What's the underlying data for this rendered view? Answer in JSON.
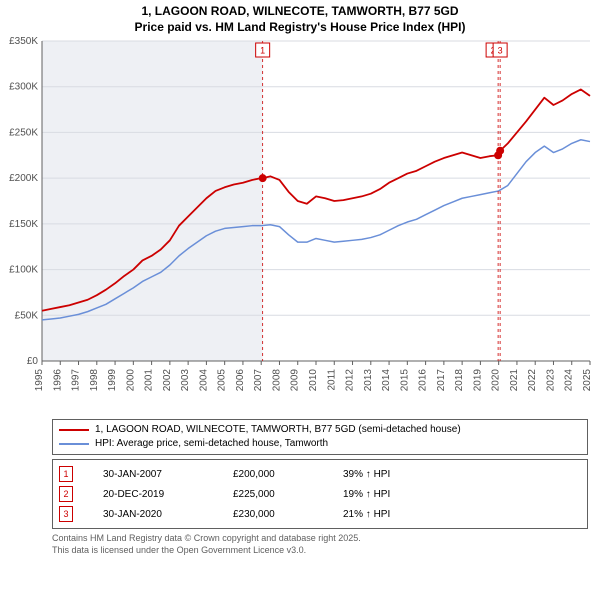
{
  "title_line1": "1, LAGOON ROAD, WILNECOTE, TAMWORTH, B77 5GD",
  "title_line2": "Price paid vs. HM Land Registry's House Price Index (HPI)",
  "chart": {
    "type": "line",
    "background_color": "#ffffff",
    "plot_bg_pre": "#eef0f4",
    "plot_bg_post": "#ffffff",
    "split_x": 2007.08,
    "x_min": 1995,
    "x_max": 2025,
    "x_ticks": [
      1995,
      1996,
      1997,
      1998,
      1999,
      2000,
      2001,
      2002,
      2003,
      2004,
      2005,
      2006,
      2007,
      2008,
      2009,
      2010,
      2011,
      2012,
      2013,
      2014,
      2015,
      2016,
      2017,
      2018,
      2019,
      2020,
      2021,
      2022,
      2023,
      2024,
      2025
    ],
    "y_min": 0,
    "y_max": 350000,
    "y_ticks": [
      0,
      50000,
      100000,
      150000,
      200000,
      250000,
      300000,
      350000
    ],
    "y_tick_labels": [
      "£0",
      "£50K",
      "£100K",
      "£150K",
      "£200K",
      "£250K",
      "£300K",
      "£350K"
    ],
    "grid_color": "#d8dbe2",
    "axis_color": "#606060",
    "label_fontsize": 10,
    "series": {
      "price_paid": {
        "color": "#cc0000",
        "width": 1.8,
        "data": [
          [
            1995,
            55000
          ],
          [
            1995.5,
            57000
          ],
          [
            1996,
            59000
          ],
          [
            1996.5,
            61000
          ],
          [
            1997,
            64000
          ],
          [
            1997.5,
            67000
          ],
          [
            1998,
            72000
          ],
          [
            1998.5,
            78000
          ],
          [
            1999,
            85000
          ],
          [
            1999.5,
            93000
          ],
          [
            2000,
            100000
          ],
          [
            2000.5,
            110000
          ],
          [
            2001,
            115000
          ],
          [
            2001.5,
            122000
          ],
          [
            2002,
            132000
          ],
          [
            2002.5,
            148000
          ],
          [
            2003,
            158000
          ],
          [
            2003.5,
            168000
          ],
          [
            2004,
            178000
          ],
          [
            2004.5,
            186000
          ],
          [
            2005,
            190000
          ],
          [
            2005.5,
            193000
          ],
          [
            2006,
            195000
          ],
          [
            2006.5,
            198000
          ],
          [
            2007,
            200000
          ],
          [
            2007.08,
            200000
          ],
          [
            2007.5,
            202000
          ],
          [
            2008,
            198000
          ],
          [
            2008.5,
            185000
          ],
          [
            2009,
            175000
          ],
          [
            2009.5,
            172000
          ],
          [
            2010,
            180000
          ],
          [
            2010.5,
            178000
          ],
          [
            2011,
            175000
          ],
          [
            2011.5,
            176000
          ],
          [
            2012,
            178000
          ],
          [
            2012.5,
            180000
          ],
          [
            2013,
            183000
          ],
          [
            2013.5,
            188000
          ],
          [
            2014,
            195000
          ],
          [
            2014.5,
            200000
          ],
          [
            2015,
            205000
          ],
          [
            2015.5,
            208000
          ],
          [
            2016,
            213000
          ],
          [
            2016.5,
            218000
          ],
          [
            2017,
            222000
          ],
          [
            2017.5,
            225000
          ],
          [
            2018,
            228000
          ],
          [
            2018.5,
            225000
          ],
          [
            2019,
            222000
          ],
          [
            2019.5,
            224000
          ],
          [
            2019.97,
            225000
          ],
          [
            2020.02,
            225000
          ],
          [
            2020.08,
            230000
          ],
          [
            2020.5,
            238000
          ],
          [
            2021,
            250000
          ],
          [
            2021.5,
            262000
          ],
          [
            2022,
            275000
          ],
          [
            2022.5,
            288000
          ],
          [
            2023,
            280000
          ],
          [
            2023.5,
            285000
          ],
          [
            2024,
            292000
          ],
          [
            2024.5,
            297000
          ],
          [
            2025,
            290000
          ]
        ]
      },
      "hpi": {
        "color": "#6a8fd8",
        "width": 1.5,
        "data": [
          [
            1995,
            45000
          ],
          [
            1995.5,
            46000
          ],
          [
            1996,
            47000
          ],
          [
            1996.5,
            49000
          ],
          [
            1997,
            51000
          ],
          [
            1997.5,
            54000
          ],
          [
            1998,
            58000
          ],
          [
            1998.5,
            62000
          ],
          [
            1999,
            68000
          ],
          [
            1999.5,
            74000
          ],
          [
            2000,
            80000
          ],
          [
            2000.5,
            87000
          ],
          [
            2001,
            92000
          ],
          [
            2001.5,
            97000
          ],
          [
            2002,
            105000
          ],
          [
            2002.5,
            115000
          ],
          [
            2003,
            123000
          ],
          [
            2003.5,
            130000
          ],
          [
            2004,
            137000
          ],
          [
            2004.5,
            142000
          ],
          [
            2005,
            145000
          ],
          [
            2005.5,
            146000
          ],
          [
            2006,
            147000
          ],
          [
            2006.5,
            148000
          ],
          [
            2007,
            148000
          ],
          [
            2007.5,
            149000
          ],
          [
            2008,
            147000
          ],
          [
            2008.5,
            138000
          ],
          [
            2009,
            130000
          ],
          [
            2009.5,
            130000
          ],
          [
            2010,
            134000
          ],
          [
            2010.5,
            132000
          ],
          [
            2011,
            130000
          ],
          [
            2011.5,
            131000
          ],
          [
            2012,
            132000
          ],
          [
            2012.5,
            133000
          ],
          [
            2013,
            135000
          ],
          [
            2013.5,
            138000
          ],
          [
            2014,
            143000
          ],
          [
            2014.5,
            148000
          ],
          [
            2015,
            152000
          ],
          [
            2015.5,
            155000
          ],
          [
            2016,
            160000
          ],
          [
            2016.5,
            165000
          ],
          [
            2017,
            170000
          ],
          [
            2017.5,
            174000
          ],
          [
            2018,
            178000
          ],
          [
            2018.5,
            180000
          ],
          [
            2019,
            182000
          ],
          [
            2019.5,
            184000
          ],
          [
            2020,
            186000
          ],
          [
            2020.5,
            192000
          ],
          [
            2021,
            205000
          ],
          [
            2021.5,
            218000
          ],
          [
            2022,
            228000
          ],
          [
            2022.5,
            235000
          ],
          [
            2023,
            228000
          ],
          [
            2023.5,
            232000
          ],
          [
            2024,
            238000
          ],
          [
            2024.5,
            242000
          ],
          [
            2025,
            240000
          ]
        ]
      }
    },
    "markers": [
      {
        "n": "1",
        "x": 2007.08,
        "y": 200000,
        "point": true
      },
      {
        "n": "2",
        "x": 2019.97,
        "y": 225000,
        "point": true,
        "label_offset_x": -5
      },
      {
        "n": "3",
        "x": 2020.08,
        "y": 230000,
        "point": true
      }
    ]
  },
  "legend": {
    "series1_label": "1, LAGOON ROAD, WILNECOTE, TAMWORTH, B77 5GD (semi-detached house)",
    "series1_color": "#cc0000",
    "series2_label": "HPI: Average price, semi-detached house, Tamworth",
    "series2_color": "#6a8fd8"
  },
  "events": [
    {
      "n": "1",
      "date": "30-JAN-2007",
      "price": "£200,000",
      "delta": "39% ↑ HPI"
    },
    {
      "n": "2",
      "date": "20-DEC-2019",
      "price": "£225,000",
      "delta": "19% ↑ HPI"
    },
    {
      "n": "3",
      "date": "30-JAN-2020",
      "price": "£230,000",
      "delta": "21% ↑ HPI"
    }
  ],
  "footer_line1": "Contains HM Land Registry data © Crown copyright and database right 2025.",
  "footer_line2": "This data is licensed under the Open Government Licence v3.0."
}
